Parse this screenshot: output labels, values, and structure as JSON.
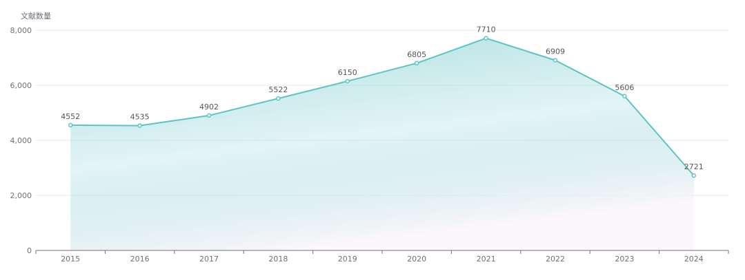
{
  "chart_data": {
    "type": "area",
    "title": "",
    "xlabel": "",
    "ylabel": "文献数量",
    "categories": [
      "2015",
      "2016",
      "2017",
      "2018",
      "2019",
      "2020",
      "2021",
      "2022",
      "2023",
      "2024"
    ],
    "values": [
      4552,
      4535,
      4902,
      5522,
      6150,
      6805,
      7710,
      6909,
      5606,
      2721
    ],
    "ylim": [
      0,
      8000
    ],
    "yticks": [
      0,
      2000,
      4000,
      6000,
      8000
    ],
    "ytick_labels": [
      "0",
      "2,000",
      "4,000",
      "6,000",
      "8,000"
    ],
    "grid": true,
    "legend": "none",
    "data_labels": true,
    "colors": {
      "line": "#5bc4c4",
      "fill_top": "#8fd3d6",
      "grid": "#e8e8e8",
      "axis": "#6e7079",
      "text": "#6e7079",
      "label": "#555555"
    }
  }
}
